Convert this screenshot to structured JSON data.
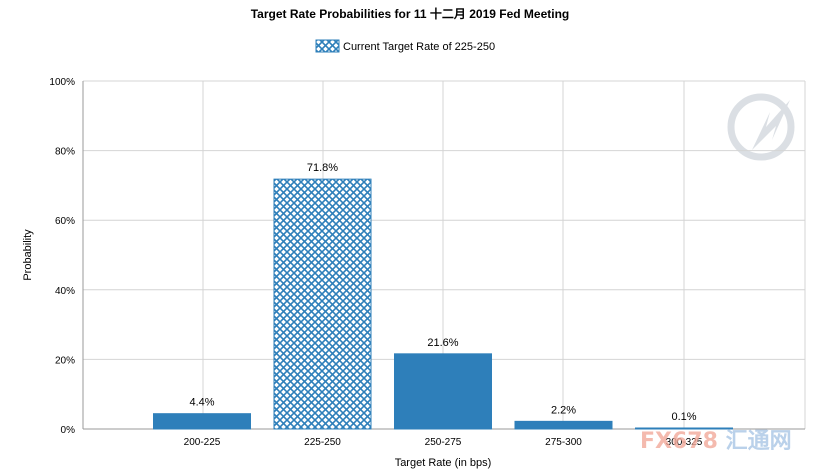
{
  "chart_data": {
    "type": "bar",
    "title": "Target Rate Probabilities for 11 十二月 2019  Fed Meeting",
    "xlabel": "Target Rate (in bps)",
    "ylabel": "Probability",
    "categories": [
      "200-225",
      "225-250",
      "250-275",
      "275-300",
      "300-325"
    ],
    "series": [
      {
        "values": [
          4.4,
          71.8,
          21.6,
          2.2,
          0.1
        ],
        "data_labels": [
          "4.4%",
          "71.8%",
          "21.6%",
          "2.2%",
          "0.1%"
        ]
      }
    ],
    "highlight": {
      "category": "225-250",
      "pattern": "crosshatch",
      "legend_label": "Current Target Rate of 225-250"
    },
    "ylim": [
      0,
      100
    ],
    "yticks": [
      0,
      20,
      40,
      60,
      80,
      100
    ],
    "ytick_labels": [
      "0%",
      "20%",
      "40%",
      "60%",
      "80%",
      "100%"
    ],
    "grid": true,
    "legend_placement": "top-center",
    "colors": {
      "bar": "#2e7fba",
      "hatch_line": "#2e7fba",
      "hatch_bg": "#ffffff",
      "grid": "#d4d4d4",
      "axis": "#9a9a9a"
    }
  },
  "watermark": {
    "text": "FX678 汇通网",
    "colors": {
      "fx": "#f2a99a",
      "cn": "#a9c6e6"
    }
  }
}
